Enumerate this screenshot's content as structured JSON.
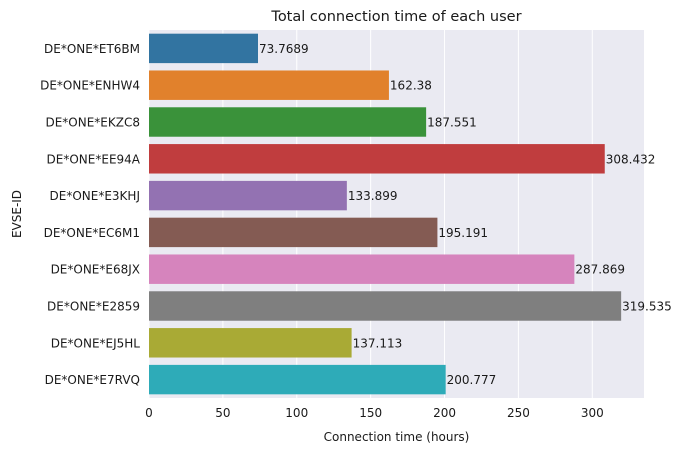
{
  "chart_data": {
    "type": "bar",
    "orientation": "horizontal",
    "title": "Total connection time of each user",
    "xlabel": "Connection time (hours)",
    "ylabel": "EVSE-ID",
    "categories": [
      "DE*ONE*ET6BM",
      "DE*ONE*ENHW4",
      "DE*ONE*EKZC8",
      "DE*ONE*EE94A",
      "DE*ONE*E3KHJ",
      "DE*ONE*EC6M1",
      "DE*ONE*E68JX",
      "DE*ONE*E2859",
      "DE*ONE*EJ5HL",
      "DE*ONE*E7RVQ"
    ],
    "values": [
      73.7689,
      162.38,
      187.551,
      308.432,
      133.899,
      195.191,
      287.869,
      319.535,
      137.113,
      200.777
    ],
    "value_labels": [
      "73.7689",
      "162.38",
      "187.551",
      "308.432",
      "133.899",
      "195.191",
      "287.869",
      "319.535",
      "137.113",
      "200.777"
    ],
    "colors": [
      "#3274a1",
      "#e1812c",
      "#3a923a",
      "#c03d3e",
      "#9372b2",
      "#845b53",
      "#d684bd",
      "#7f7f7f",
      "#a9aa35",
      "#2eabb8"
    ],
    "xlim": [
      0,
      335
    ],
    "xticks": [
      0,
      50,
      100,
      150,
      200,
      250,
      300
    ],
    "grid": true,
    "background": "#eaeaf2"
  }
}
